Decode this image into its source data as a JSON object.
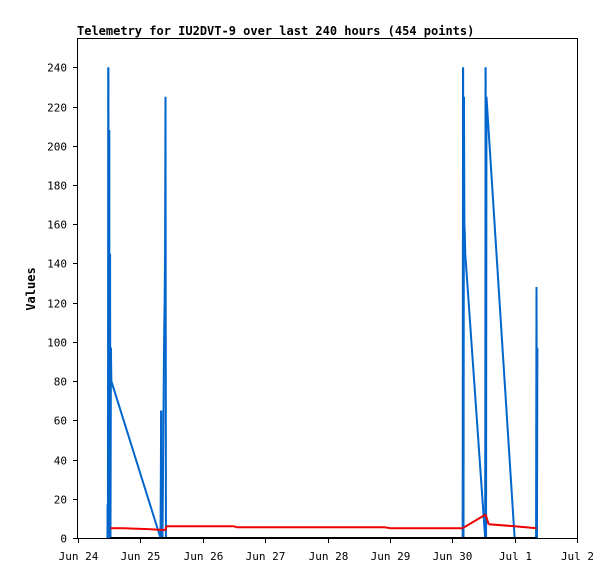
{
  "chart_data": {
    "type": "line",
    "title": "Telemetry for IU2DVT-9 over last 240 hours (454 points)",
    "xlabel": "",
    "ylabel": "Values",
    "xlim": [
      "2024-06-24T00:00",
      "2024-07-02T00:00"
    ],
    "ylim": [
      0,
      255
    ],
    "x_ticks": [
      {
        "label": "Jun 24",
        "at": "2024-06-24T00:00"
      },
      {
        "label": "Jun 25",
        "at": "2024-06-25T00:00"
      },
      {
        "label": "Jun 26",
        "at": "2024-06-26T00:00"
      },
      {
        "label": "Jun 27",
        "at": "2024-06-27T00:00"
      },
      {
        "label": "Jun 28",
        "at": "2024-06-28T00:00"
      },
      {
        "label": "Jun 29",
        "at": "2024-06-29T00:00"
      },
      {
        "label": "Jun 30",
        "at": "2024-06-30T00:00"
      },
      {
        "label": "Jul 1",
        "at": "2024-07-01T00:00"
      },
      {
        "label": "Jul 2",
        "at": "2024-07-02T00:00"
      }
    ],
    "y_ticks": [
      0,
      20,
      40,
      60,
      80,
      100,
      120,
      140,
      160,
      180,
      200,
      220,
      240
    ],
    "grid": false,
    "series": [
      {
        "color": "#0066cc",
        "points": [
          [
            "2024-06-24T11:20",
            0
          ],
          [
            "2024-06-24T11:25",
            17
          ],
          [
            "2024-06-24T11:30",
            0
          ],
          [
            "2024-06-24T11:40",
            240
          ],
          [
            "2024-06-24T11:50",
            0
          ],
          [
            "2024-06-24T12:00",
            208
          ],
          [
            "2024-06-24T12:10",
            0
          ],
          [
            "2024-06-24T12:20",
            145
          ],
          [
            "2024-06-24T12:30",
            0
          ],
          [
            "2024-06-24T12:40",
            97
          ],
          [
            "2024-06-24T12:50",
            80
          ],
          [
            "2024-06-25T07:45",
            0
          ],
          [
            "2024-06-25T08:00",
            65
          ],
          [
            "2024-06-25T08:10",
            0
          ],
          [
            "2024-06-25T08:20",
            40
          ],
          [
            "2024-06-25T08:30",
            0
          ],
          [
            "2024-06-25T09:00",
            80
          ],
          [
            "2024-06-25T09:10",
            105
          ],
          [
            "2024-06-25T09:20",
            120
          ],
          [
            "2024-06-25T09:30",
            145
          ],
          [
            "2024-06-25T09:40",
            225
          ],
          [
            "2024-06-25T09:50",
            0
          ],
          [
            "2024-06-30T04:00",
            0
          ],
          [
            "2024-06-30T04:10",
            240
          ],
          [
            "2024-06-30T04:20",
            0
          ],
          [
            "2024-06-30T04:30",
            225
          ],
          [
            "2024-06-30T04:40",
            160
          ],
          [
            "2024-06-30T04:50",
            155
          ],
          [
            "2024-06-30T05:00",
            145
          ],
          [
            "2024-06-30T12:40",
            0
          ],
          [
            "2024-06-30T12:50",
            240
          ],
          [
            "2024-06-30T13:00",
            0
          ],
          [
            "2024-06-30T13:10",
            225
          ],
          [
            "2024-07-01T00:00",
            0
          ],
          [
            "2024-07-01T08:15",
            0
          ],
          [
            "2024-07-01T08:25",
            128
          ],
          [
            "2024-07-01T08:35",
            0
          ],
          [
            "2024-07-01T08:45",
            97
          ]
        ]
      },
      {
        "color": "#ee0000",
        "points": [
          [
            "2024-06-24T12:30",
            5
          ],
          [
            "2024-06-24T17:00",
            5
          ],
          [
            "2024-06-25T03:00",
            4.5
          ],
          [
            "2024-06-25T09:40",
            4
          ],
          [
            "2024-06-25T10:00",
            6
          ],
          [
            "2024-06-26T12:00",
            6
          ],
          [
            "2024-06-26T13:00",
            5.5
          ],
          [
            "2024-06-28T22:00",
            5.5
          ],
          [
            "2024-06-29T00:00",
            5
          ],
          [
            "2024-06-30T04:00",
            5
          ],
          [
            "2024-06-30T12:50",
            12
          ],
          [
            "2024-06-30T14:00",
            7
          ],
          [
            "2024-07-01T00:00",
            6
          ],
          [
            "2024-07-01T08:30",
            5
          ]
        ]
      },
      {
        "color": "#000000",
        "points": [
          [
            "2024-06-24T12:30",
            0
          ],
          [
            "2024-07-01T08:30",
            0
          ]
        ]
      }
    ]
  }
}
